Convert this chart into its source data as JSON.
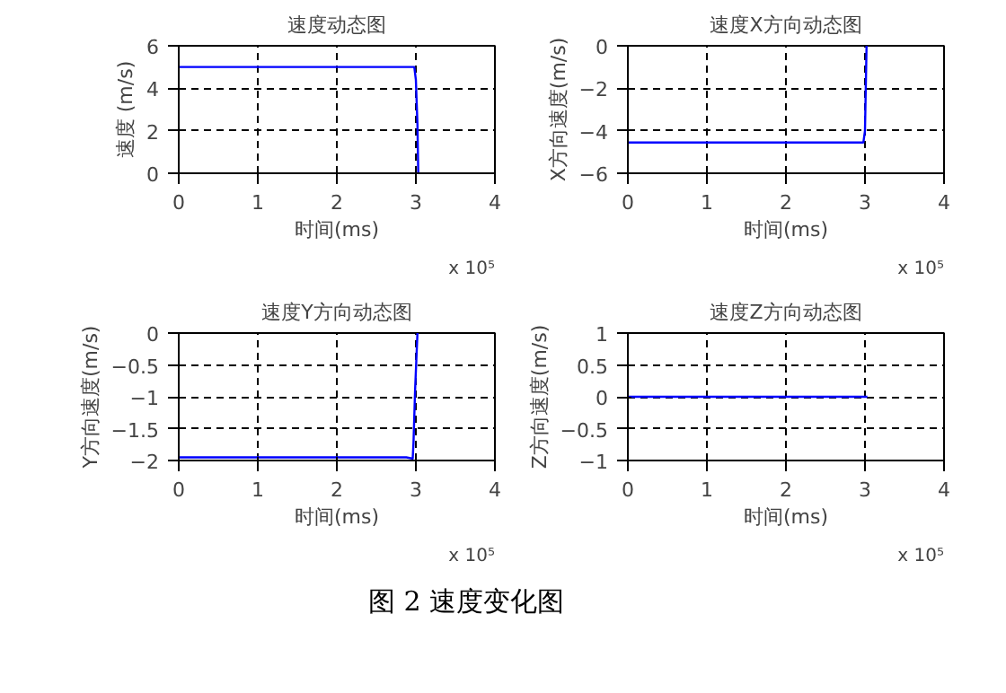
{
  "chart_data": [
    {
      "type": "line",
      "title": "速度动态图",
      "xlabel": "时间(ms)",
      "ylabel": "速度 (m/s)",
      "x": [
        0,
        2.98,
        3.0,
        3.02,
        3.03
      ],
      "series": [
        {
          "color": "#0000ff",
          "values": [
            5,
            5,
            4.4,
            2.3,
            0
          ]
        }
      ],
      "xlim": [
        0,
        4
      ],
      "ylim": [
        0,
        6
      ],
      "xticks": [
        0,
        1,
        2,
        3,
        4
      ],
      "yticks": [
        0,
        2,
        4,
        6
      ],
      "grid": true,
      "annotations": [
        "x 10⁵"
      ]
    },
    {
      "type": "line",
      "title": "速度X方向动态图",
      "xlabel": "时间(ms)",
      "ylabel": "X方向速度(m/s)",
      "x": [
        0,
        2.98,
        3.0,
        3.02
      ],
      "series": [
        {
          "color": "#0000ff",
          "values": [
            -4.55,
            -4.55,
            -4,
            0
          ]
        }
      ],
      "xlim": [
        0,
        4
      ],
      "ylim": [
        -6,
        0
      ],
      "xticks": [
        0,
        1,
        2,
        3,
        4
      ],
      "yticks": [
        -6,
        -4,
        -2,
        0
      ],
      "grid": true,
      "annotations": [
        "x 10⁵"
      ]
    },
    {
      "type": "line",
      "title": "速度Y方向动态图",
      "xlabel": "时间(ms)",
      "ylabel": "Y方向速度(m/s)",
      "x": [
        0,
        2.88,
        2.96,
        2.97,
        2.99,
        3.02
      ],
      "series": [
        {
          "color": "#0000ff",
          "values": [
            -1.95,
            -1.95,
            -1.97,
            -1.72,
            -0.9,
            0
          ]
        }
      ],
      "xlim": [
        0,
        4
      ],
      "ylim": [
        -2,
        0
      ],
      "xticks": [
        0,
        1,
        2,
        3,
        4
      ],
      "yticks": [
        -2,
        -1.5,
        -1,
        -0.5,
        0
      ],
      "grid": true,
      "annotations": [
        "x 10⁵"
      ]
    },
    {
      "type": "line",
      "title": "速度Z方向动态图",
      "xlabel": "时间(ms)",
      "ylabel": "Z方向速度(m/s)",
      "x": [
        0,
        3.03
      ],
      "series": [
        {
          "color": "#0000ff",
          "values": [
            0,
            0
          ]
        }
      ],
      "xlim": [
        0,
        4
      ],
      "ylim": [
        -1,
        1
      ],
      "xticks": [
        0,
        1,
        2,
        3,
        4
      ],
      "yticks": [
        -1,
        -0.5,
        0,
        0.5,
        1
      ],
      "grid": true,
      "annotations": [
        "x 10⁵",
        "图 2  速度变化图"
      ]
    }
  ]
}
